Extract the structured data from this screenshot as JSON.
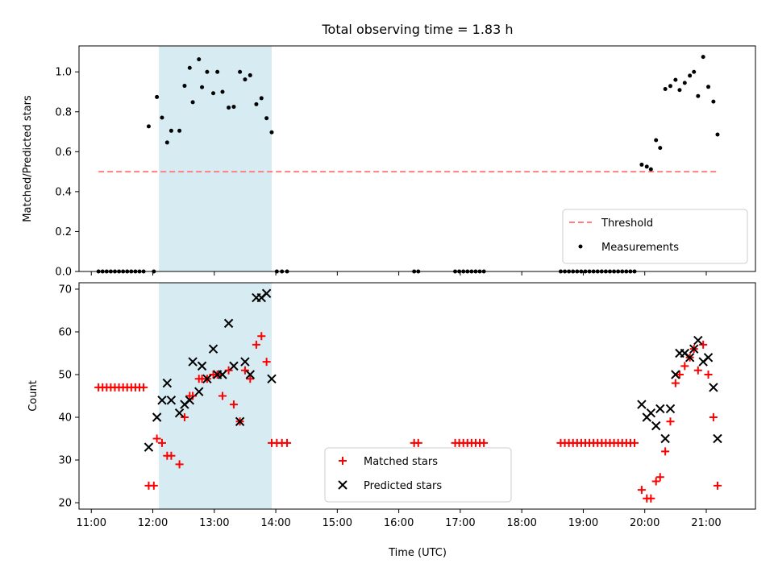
{
  "figure": {
    "title": "Total observing time = 1.83 h",
    "xlabel": "Time (UTC)",
    "x_tick_labels": [
      "11:00",
      "12:00",
      "13:00",
      "14:00",
      "15:00",
      "16:00",
      "17:00",
      "18:00",
      "19:00",
      "20:00",
      "21:00"
    ],
    "span_color": "#add8e6",
    "span_start": "12:06",
    "span_end": "13:56"
  },
  "chart_data": [
    {
      "type": "scatter",
      "title": "Total observing time = 1.83 h",
      "ylabel": "Matched/Predicted stars",
      "ylim": [
        0,
        1.13
      ],
      "xlim": [
        "10:48",
        "21:48"
      ],
      "y_ticks": [
        "0.0",
        "0.2",
        "0.4",
        "0.6",
        "0.8",
        "1.0"
      ],
      "grid": false,
      "legend_position": "bottom-right",
      "threshold": {
        "name": "Threshold",
        "value": 0.5,
        "x_start": "11:07",
        "x_end": "21:12",
        "color": "#ff7f7f",
        "style": "dashed"
      },
      "series": [
        {
          "name": "Measurements",
          "color": "#000000",
          "points": [
            [
              "11:07",
              0
            ],
            [
              "11:11",
              0
            ],
            [
              "11:15",
              0
            ],
            [
              "11:19",
              0
            ],
            [
              "11:23",
              0
            ],
            [
              "11:27",
              0
            ],
            [
              "11:31",
              0
            ],
            [
              "11:35",
              0
            ],
            [
              "11:39",
              0
            ],
            [
              "11:43",
              0
            ],
            [
              "11:47",
              0
            ],
            [
              "11:51",
              0
            ],
            [
              "11:56",
              0.727
            ],
            [
              "12:01",
              0
            ],
            [
              "12:04",
              0.874
            ],
            [
              "12:09",
              0.771
            ],
            [
              "12:14",
              0.646
            ],
            [
              "12:18",
              0.705
            ],
            [
              "12:26",
              0.705
            ],
            [
              "12:31",
              0.93
            ],
            [
              "12:36",
              1.02
            ],
            [
              "12:39",
              0.848
            ],
            [
              "12:45",
              1.063
            ],
            [
              "12:48",
              0.923
            ],
            [
              "12:53",
              1.0
            ],
            [
              "12:59",
              0.893
            ],
            [
              "13:03",
              1.0
            ],
            [
              "13:08",
              0.9
            ],
            [
              "13:14",
              0.821
            ],
            [
              "13:19",
              0.825
            ],
            [
              "13:25",
              1.0
            ],
            [
              "13:30",
              0.962
            ],
            [
              "13:35",
              0.983
            ],
            [
              "13:41",
              0.838
            ],
            [
              "13:46",
              0.868
            ],
            [
              "13:51",
              0.768
            ],
            [
              "13:56",
              0.697
            ],
            [
              "14:01",
              0
            ],
            [
              "14:06",
              0
            ],
            [
              "14:11",
              0
            ],
            [
              "16:15",
              0
            ],
            [
              "16:19",
              0
            ],
            [
              "16:55",
              0
            ],
            [
              "16:59",
              0
            ],
            [
              "17:03",
              0
            ],
            [
              "17:07",
              0
            ],
            [
              "17:11",
              0
            ],
            [
              "17:15",
              0
            ],
            [
              "17:19",
              0
            ],
            [
              "17:23",
              0
            ],
            [
              "18:38",
              0
            ],
            [
              "18:42",
              0
            ],
            [
              "18:46",
              0
            ],
            [
              "18:50",
              0
            ],
            [
              "18:54",
              0
            ],
            [
              "18:58",
              0
            ],
            [
              "19:02",
              0
            ],
            [
              "19:06",
              0
            ],
            [
              "19:10",
              0
            ],
            [
              "19:14",
              0
            ],
            [
              "19:18",
              0
            ],
            [
              "19:22",
              0
            ],
            [
              "19:26",
              0
            ],
            [
              "19:30",
              0
            ],
            [
              "19:34",
              0
            ],
            [
              "19:38",
              0
            ],
            [
              "19:42",
              0
            ],
            [
              "19:46",
              0
            ],
            [
              "19:50",
              0
            ],
            [
              "19:57",
              0.535
            ],
            [
              "20:02",
              0.525
            ],
            [
              "20:06",
              0.512
            ],
            [
              "20:11",
              0.658
            ],
            [
              "20:15",
              0.619
            ],
            [
              "20:20",
              0.914
            ],
            [
              "20:25",
              0.929
            ],
            [
              "20:30",
              0.96
            ],
            [
              "20:34",
              0.909
            ],
            [
              "20:39",
              0.945
            ],
            [
              "20:44",
              0.981
            ],
            [
              "20:48",
              1.0
            ],
            [
              "20:52",
              0.879
            ],
            [
              "20:57",
              1.075
            ],
            [
              "21:02",
              0.925
            ],
            [
              "21:07",
              0.851
            ],
            [
              "21:11",
              0.686
            ]
          ]
        }
      ]
    },
    {
      "type": "scatter",
      "ylabel": "Count",
      "xlabel": "Time (UTC)",
      "ylim": [
        18.5,
        71.5
      ],
      "xlim": [
        "10:48",
        "21:48"
      ],
      "y_ticks": [
        "20",
        "30",
        "40",
        "50",
        "60",
        "70"
      ],
      "grid": false,
      "legend_position": "bottom-center",
      "series": [
        {
          "name": "Matched stars",
          "color": "#ff0000",
          "marker": "+",
          "points": [
            [
              "11:07",
              47
            ],
            [
              "11:11",
              47
            ],
            [
              "11:15",
              47
            ],
            [
              "11:19",
              47
            ],
            [
              "11:23",
              47
            ],
            [
              "11:27",
              47
            ],
            [
              "11:31",
              47
            ],
            [
              "11:35",
              47
            ],
            [
              "11:39",
              47
            ],
            [
              "11:43",
              47
            ],
            [
              "11:47",
              47
            ],
            [
              "11:51",
              47
            ],
            [
              "11:56",
              24
            ],
            [
              "12:01",
              24
            ],
            [
              "12:04",
              35
            ],
            [
              "12:09",
              34
            ],
            [
              "12:14",
              31
            ],
            [
              "12:18",
              31
            ],
            [
              "12:26",
              29
            ],
            [
              "12:31",
              40
            ],
            [
              "12:36",
              45
            ],
            [
              "12:39",
              45
            ],
            [
              "12:45",
              49
            ],
            [
              "12:48",
              49
            ],
            [
              "12:53",
              49
            ],
            [
              "12:59",
              50
            ],
            [
              "13:03",
              50
            ],
            [
              "13:08",
              45
            ],
            [
              "13:14",
              51
            ],
            [
              "13:19",
              43
            ],
            [
              "13:25",
              39
            ],
            [
              "13:30",
              51
            ],
            [
              "13:35",
              49
            ],
            [
              "13:41",
              57
            ],
            [
              "13:46",
              59
            ],
            [
              "13:51",
              53
            ],
            [
              "13:56",
              34
            ],
            [
              "14:01",
              34
            ],
            [
              "14:06",
              34
            ],
            [
              "14:11",
              34
            ],
            [
              "16:15",
              34
            ],
            [
              "16:19",
              34
            ],
            [
              "16:55",
              34
            ],
            [
              "16:59",
              34
            ],
            [
              "17:03",
              34
            ],
            [
              "17:07",
              34
            ],
            [
              "17:11",
              34
            ],
            [
              "17:15",
              34
            ],
            [
              "17:19",
              34
            ],
            [
              "17:23",
              34
            ],
            [
              "18:38",
              34
            ],
            [
              "18:42",
              34
            ],
            [
              "18:46",
              34
            ],
            [
              "18:50",
              34
            ],
            [
              "18:54",
              34
            ],
            [
              "18:58",
              34
            ],
            [
              "19:02",
              34
            ],
            [
              "19:06",
              34
            ],
            [
              "19:10",
              34
            ],
            [
              "19:14",
              34
            ],
            [
              "19:18",
              34
            ],
            [
              "19:22",
              34
            ],
            [
              "19:26",
              34
            ],
            [
              "19:30",
              34
            ],
            [
              "19:34",
              34
            ],
            [
              "19:38",
              34
            ],
            [
              "19:42",
              34
            ],
            [
              "19:46",
              34
            ],
            [
              "19:50",
              34
            ],
            [
              "19:57",
              23
            ],
            [
              "20:02",
              21
            ],
            [
              "20:06",
              21
            ],
            [
              "20:11",
              25
            ],
            [
              "20:15",
              26
            ],
            [
              "20:20",
              32
            ],
            [
              "20:25",
              39
            ],
            [
              "20:30",
              48
            ],
            [
              "20:34",
              50
            ],
            [
              "20:39",
              52
            ],
            [
              "20:44",
              54
            ],
            [
              "20:48",
              56
            ],
            [
              "20:52",
              51
            ],
            [
              "20:57",
              57
            ],
            [
              "21:02",
              50
            ],
            [
              "21:07",
              40
            ],
            [
              "21:11",
              24
            ]
          ]
        },
        {
          "name": "Predicted stars",
          "color": "#000000",
          "marker": "x",
          "points": [
            [
              "11:56",
              33
            ],
            [
              "12:04",
              40
            ],
            [
              "12:09",
              44
            ],
            [
              "12:14",
              48
            ],
            [
              "12:18",
              44
            ],
            [
              "12:26",
              41
            ],
            [
              "12:31",
              43
            ],
            [
              "12:36",
              44
            ],
            [
              "12:39",
              53
            ],
            [
              "12:45",
              46
            ],
            [
              "12:48",
              52
            ],
            [
              "12:53",
              49
            ],
            [
              "12:59",
              56
            ],
            [
              "13:03",
              50
            ],
            [
              "13:08",
              50
            ],
            [
              "13:14",
              62
            ],
            [
              "13:19",
              52
            ],
            [
              "13:25",
              39
            ],
            [
              "13:30",
              53
            ],
            [
              "13:35",
              50
            ],
            [
              "13:41",
              68
            ],
            [
              "13:46",
              68
            ],
            [
              "13:51",
              69
            ],
            [
              "13:56",
              49
            ],
            [
              "19:57",
              43
            ],
            [
              "20:02",
              40
            ],
            [
              "20:06",
              41
            ],
            [
              "20:11",
              38
            ],
            [
              "20:15",
              42
            ],
            [
              "20:20",
              35
            ],
            [
              "20:25",
              42
            ],
            [
              "20:30",
              50
            ],
            [
              "20:34",
              55
            ],
            [
              "20:39",
              55
            ],
            [
              "20:44",
              54
            ],
            [
              "20:48",
              56
            ],
            [
              "20:52",
              58
            ],
            [
              "20:57",
              53
            ],
            [
              "21:02",
              54
            ],
            [
              "21:07",
              47
            ],
            [
              "21:11",
              35
            ]
          ]
        }
      ]
    }
  ]
}
